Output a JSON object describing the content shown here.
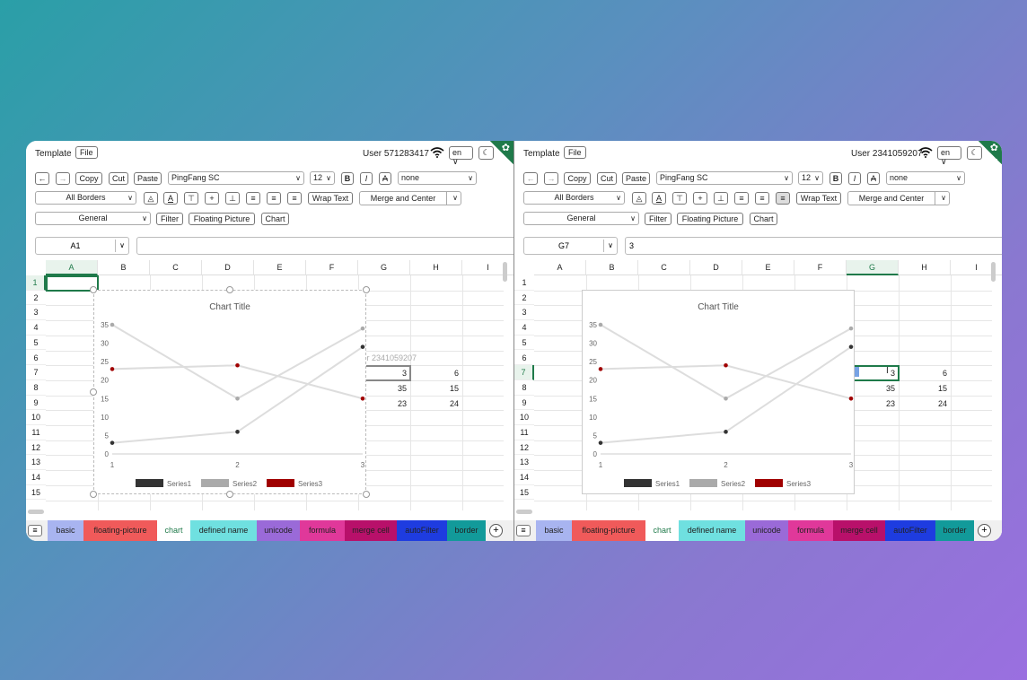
{
  "left": {
    "topbar": {
      "template_label": "Template",
      "file_label": "File",
      "user": "User 571283417",
      "lang": "en ∨",
      "theme_icon": "moon-icon"
    },
    "toolbar": {
      "undo": "←",
      "redo": "→",
      "copy": "Copy",
      "cut": "Cut",
      "paste": "Paste",
      "font": "PingFang SC",
      "size": "12",
      "bold": "B",
      "italic": "I",
      "strike": "A",
      "underline_select": "none",
      "borders": "All Borders",
      "wrap": "Wrap Text",
      "merge": "Merge and Center",
      "format": "General",
      "filter": "Filter",
      "floating": "Floating Picture",
      "chart": "Chart"
    },
    "formula": {
      "cell_ref": "A1",
      "value": ""
    },
    "active_col": "A",
    "active_row": "1",
    "collab_label": "ser 2341059207",
    "cells": {
      "g7": "3",
      "h7": "6",
      "g8": "35",
      "h8": "15",
      "g9": "23",
      "h9": "24"
    }
  },
  "right": {
    "topbar": {
      "template_label": "Template",
      "file_label": "File",
      "user": "User 2341059207",
      "lang": "en ∨",
      "theme_icon": "moon-icon"
    },
    "toolbar": {
      "undo": "←",
      "redo": "→",
      "copy": "Copy",
      "cut": "Cut",
      "paste": "Paste",
      "font": "PingFang SC",
      "size": "12",
      "bold": "B",
      "italic": "I",
      "strike": "A",
      "underline_select": "none",
      "borders": "All Borders",
      "wrap": "Wrap Text",
      "merge": "Merge and Center",
      "format": "General",
      "filter": "Filter",
      "floating": "Floating Picture",
      "chart": "Chart"
    },
    "formula": {
      "cell_ref": "G7",
      "value": "3"
    },
    "active_col": "G",
    "active_row": "7",
    "cells": {
      "g7": "3",
      "h7": "6",
      "g8": "35",
      "h8": "15",
      "g9": "23",
      "h9": "24"
    }
  },
  "columns": [
    "A",
    "B",
    "C",
    "D",
    "E",
    "F",
    "G",
    "H",
    "I"
  ],
  "rows": [
    "1",
    "2",
    "3",
    "4",
    "5",
    "6",
    "7",
    "8",
    "9",
    "10",
    "11",
    "12",
    "13",
    "14",
    "15"
  ],
  "tabs": [
    {
      "label": "basic",
      "color": "#a8b4f0"
    },
    {
      "label": "floating-picture",
      "color": "#f05a5a"
    },
    {
      "label": "chart",
      "color": "#ffffff"
    },
    {
      "label": "defined name",
      "color": "#6fe0e0"
    },
    {
      "label": "unicode",
      "color": "#9a6ad8"
    },
    {
      "label": "formula",
      "color": "#e0389a"
    },
    {
      "label": "merge cell",
      "color": "#b8106a"
    },
    {
      "label": "autoFilter",
      "color": "#1e3ce0"
    },
    {
      "label": "border",
      "color": "#129a9a"
    }
  ],
  "chart_data": {
    "type": "line",
    "title": "Chart Title",
    "categories": [
      "1",
      "2",
      "3"
    ],
    "ylim": [
      0,
      35
    ],
    "yticks": [
      "0",
      "5",
      "10",
      "15",
      "20",
      "25",
      "30",
      "35"
    ],
    "series": [
      {
        "name": "Series1",
        "values": [
          3,
          6,
          29
        ],
        "color": "#333333"
      },
      {
        "name": "Series2",
        "values": [
          35,
          15,
          34
        ],
        "color": "#aaaaaa"
      },
      {
        "name": "Series3",
        "values": [
          23,
          24,
          15
        ],
        "color": "#a00000"
      }
    ],
    "legend": "bottom"
  }
}
